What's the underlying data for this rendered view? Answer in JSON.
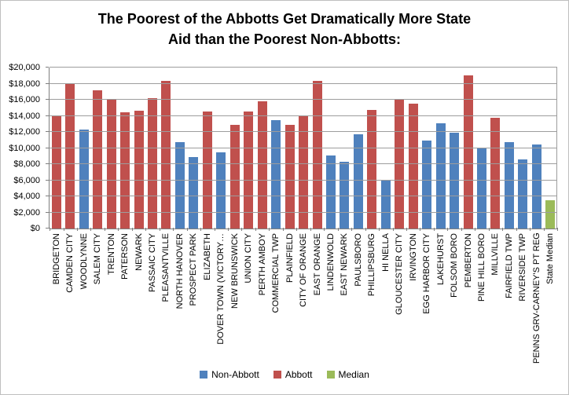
{
  "title": "The Poorest of the Abbotts Get Dramatically More State Aid than the Poorest Non-Abbotts:",
  "title_lines": [
    "The Poorest of the Abbotts Get Dramatically More State",
    "Aid than the Poorest Non-Abbotts:"
  ],
  "chart_data": {
    "type": "bar",
    "title": "The Poorest of the Abbotts Get Dramatically More State Aid than the Poorest Non-Abbotts:",
    "xlabel": "",
    "ylabel": "",
    "ylim": [
      0,
      20000
    ],
    "y_tick_step": 2000,
    "y_tick_labels": [
      "$0",
      "$2,000",
      "$4,000",
      "$6,000",
      "$8,000",
      "$10,000",
      "$12,000",
      "$14,000",
      "$16,000",
      "$18,000",
      "$20,000"
    ],
    "grid": true,
    "gridlines_over_bars": true,
    "legend_position": "bottom",
    "categories": [
      "BRIDGETON",
      "CAMDEN CITY",
      "WOODLYNNE",
      "SALEM CITY",
      "TRENTON",
      "PATERSON",
      "NEWARK",
      "PASSAIC CITY",
      "PLEASANTVILLE",
      "NORTH HANOVER",
      "PROSPECT PARK",
      "ELIZABETH",
      "DOVER TOWN (VICTORY…",
      "NEW BRUNSWICK",
      "UNION CITY",
      "PERTH AMBOY",
      "COMMERCIAL TWP",
      "PLAINFIELD",
      "CITY OF ORANGE",
      "EAST ORANGE",
      "LINDENWOLD",
      "EAST NEWARK",
      "PAULSBORO",
      "PHILLIPSBURG",
      "HI NELLA",
      "GLOUCESTER CITY",
      "IRVINGTON",
      "EGG HARBOR CITY",
      "LAKEHURST",
      "FOLSOM BORO",
      "PEMBERTON",
      "PINE HILL BORO",
      "MILLVILLE",
      "FAIRFIELD TWP",
      "RIVERSIDE TWP",
      "PENNS GRV-CARNEY'S PT REG",
      "State Median"
    ],
    "groups": [
      "Abbott",
      "Abbott",
      "Non-Abbott",
      "Abbott",
      "Abbott",
      "Abbott",
      "Abbott",
      "Abbott",
      "Abbott",
      "Non-Abbott",
      "Non-Abbott",
      "Abbott",
      "Non-Abbott",
      "Abbott",
      "Abbott",
      "Abbott",
      "Non-Abbott",
      "Abbott",
      "Abbott",
      "Abbott",
      "Non-Abbott",
      "Non-Abbott",
      "Non-Abbott",
      "Abbott",
      "Non-Abbott",
      "Abbott",
      "Abbott",
      "Non-Abbott",
      "Non-Abbott",
      "Non-Abbott",
      "Abbott",
      "Non-Abbott",
      "Abbott",
      "Non-Abbott",
      "Non-Abbott",
      "Non-Abbott",
      "Median"
    ],
    "values": [
      14050,
      18050,
      12300,
      17200,
      16100,
      14400,
      14600,
      16200,
      18350,
      10750,
      8900,
      14550,
      9450,
      12900,
      14550,
      15800,
      13500,
      12900,
      14050,
      18300,
      9100,
      8300,
      11700,
      14750,
      5950,
      16000,
      15500,
      10900,
      13100,
      11950,
      19000,
      10000,
      13750,
      10750,
      8550,
      10400,
      3550
    ],
    "series_colors": {
      "Non-Abbott": "#4F81BD",
      "Abbott": "#C0504D",
      "Median": "#9BBB59"
    },
    "legend": [
      {
        "label": "Non-Abbott",
        "color": "#4F81BD"
      },
      {
        "label": "Abbott",
        "color": "#C0504D"
      },
      {
        "label": "Median",
        "color": "#9BBB59"
      }
    ]
  }
}
